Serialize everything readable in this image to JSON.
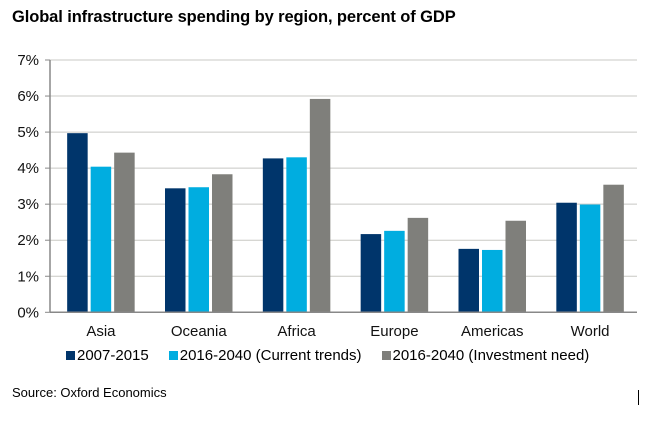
{
  "title": "Global infrastructure spending by region, percent of GDP",
  "source": "Source: Oxford Economics",
  "chart_data": {
    "type": "bar",
    "title": "Global infrastructure spending by region, percent of GDP",
    "xlabel": "",
    "ylabel": "",
    "ylim": [
      0,
      7
    ],
    "yticks": [
      "0%",
      "1%",
      "2%",
      "3%",
      "4%",
      "5%",
      "6%",
      "7%"
    ],
    "grid": true,
    "legend_position": "bottom",
    "categories": [
      "Asia",
      "Oceania",
      "Africa",
      "Europe",
      "Americas",
      "World"
    ],
    "series": [
      {
        "name": "2007-2015",
        "color": "#00356b",
        "values": [
          4.97,
          3.44,
          4.27,
          2.17,
          1.76,
          3.04
        ]
      },
      {
        "name": "2016-2040 (Current trends)",
        "color": "#00ade0",
        "values": [
          4.04,
          3.47,
          4.3,
          2.26,
          1.73,
          2.99
        ]
      },
      {
        "name": "2016-2040 (Investment need)",
        "color": "#7f7f7b",
        "values": [
          4.43,
          3.83,
          5.92,
          2.62,
          2.54,
          3.54
        ]
      }
    ]
  }
}
